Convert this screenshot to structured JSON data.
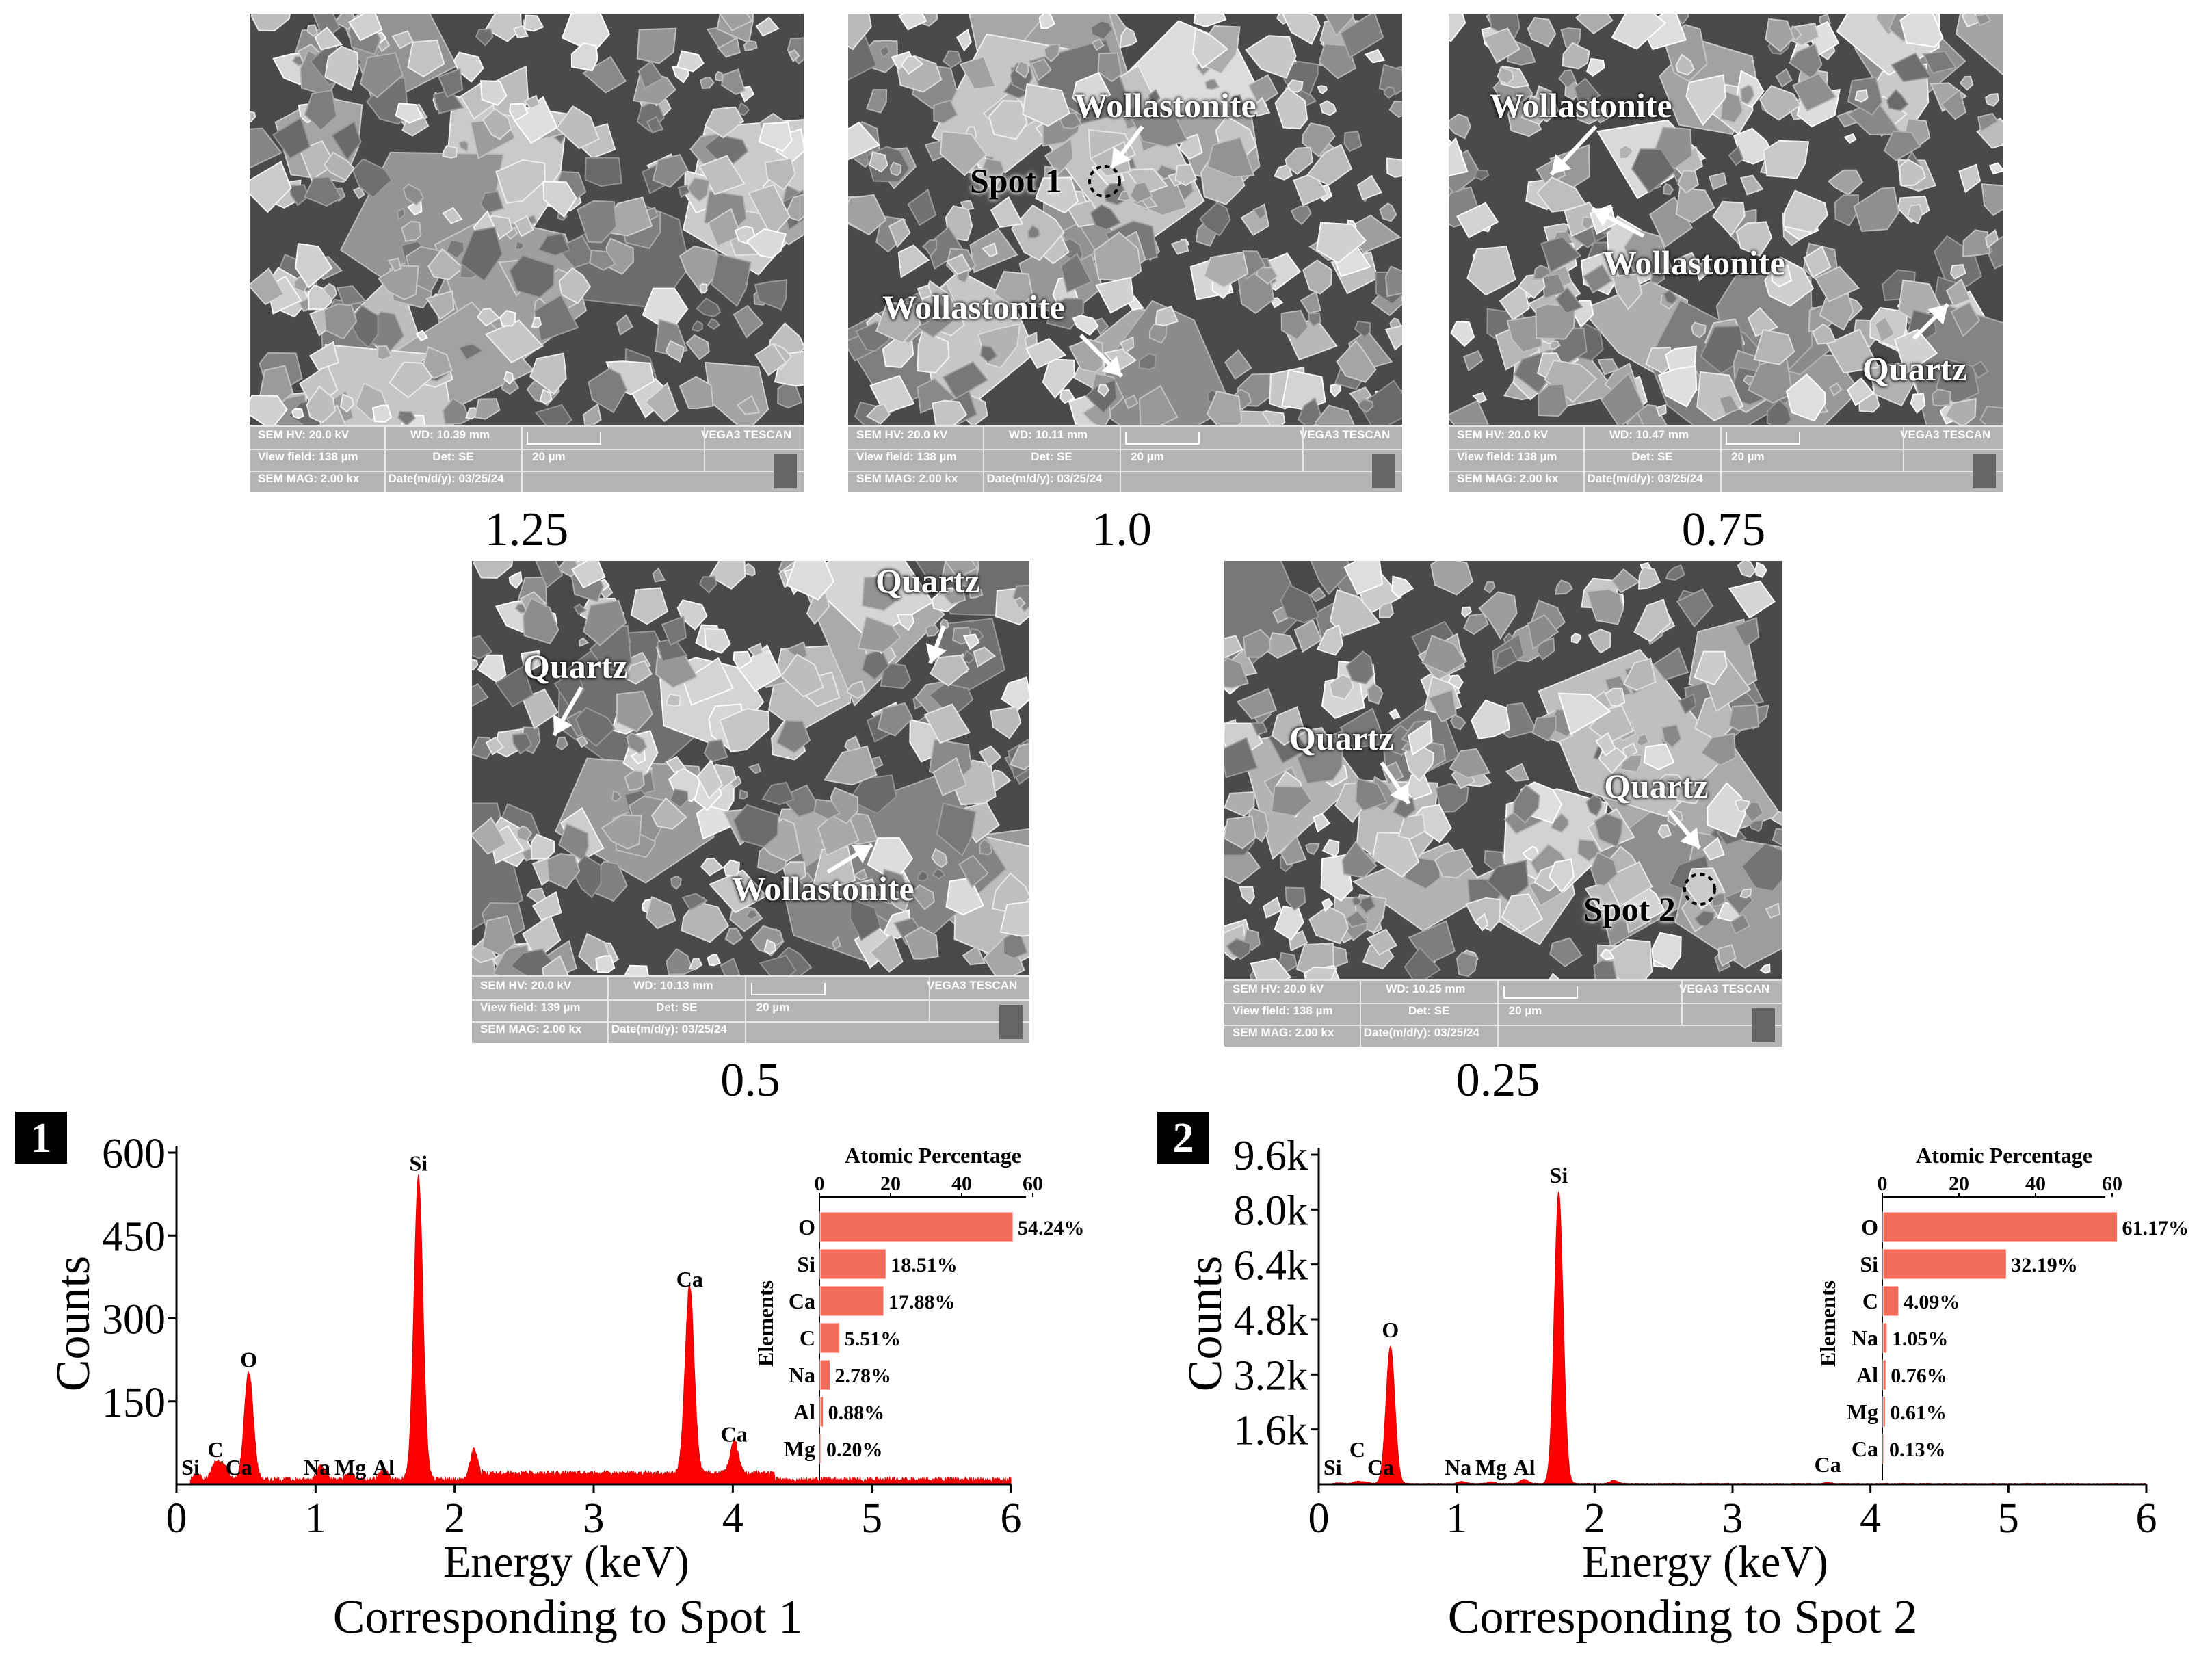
{
  "sem_images": [
    {
      "sample": "1.25",
      "labels": [],
      "spot": null,
      "info": {
        "hv": "SEM HV: 20.0 kV",
        "wd": "WD: 10.39 mm",
        "brand": "VEGA3 TESCAN",
        "view_field": "View field: 138 µm",
        "det": "Det: SE",
        "scale": "20 µm",
        "mag": "SEM MAG: 2.00 kx",
        "date": "Date(m/d/y): 03/25/24"
      }
    },
    {
      "sample": "1.0",
      "labels": [
        "Wollastonite",
        "Wollastonite"
      ],
      "spot": "Spot 1",
      "info": {
        "hv": "SEM HV: 20.0 kV",
        "wd": "WD: 10.11 mm",
        "brand": "VEGA3 TESCAN",
        "view_field": "View field: 138 µm",
        "det": "Det: SE",
        "scale": "20 µm",
        "mag": "SEM MAG: 2.00 kx",
        "date": "Date(m/d/y): 03/25/24"
      }
    },
    {
      "sample": "0.75",
      "labels": [
        "Wollastonite",
        "Wollastonite",
        "Quartz"
      ],
      "spot": null,
      "info": {
        "hv": "SEM HV: 20.0 kV",
        "wd": "WD: 10.47 mm",
        "brand": "VEGA3 TESCAN",
        "view_field": "View field: 138 µm",
        "det": "Det: SE",
        "scale": "20 µm",
        "mag": "SEM MAG: 2.00 kx",
        "date": "Date(m/d/y): 03/25/24"
      }
    },
    {
      "sample": "0.5",
      "labels": [
        "Quartz",
        "Quartz",
        "Wollastonite"
      ],
      "spot": null,
      "info": {
        "hv": "SEM HV: 20.0 kV",
        "wd": "WD: 10.13 mm",
        "brand": "VEGA3 TESCAN",
        "view_field": "View field: 139 µm",
        "det": "Det: SE",
        "scale": "20 µm",
        "mag": "SEM MAG: 2.00 kx",
        "date": "Date(m/d/y): 03/25/24"
      }
    },
    {
      "sample": "0.25",
      "labels": [
        "Quartz",
        "Quartz"
      ],
      "spot": "Spot 2",
      "info": {
        "hv": "SEM HV: 20.0 kV",
        "wd": "WD: 10.25 mm",
        "brand": "VEGA3 TESCAN",
        "view_field": "View field: 138 µm",
        "det": "Det: SE",
        "scale": "20 µm",
        "mag": "SEM MAG: 2.00 kx",
        "date": "Date(m/d/y): 03/25/24"
      }
    }
  ],
  "chart_data": [
    {
      "type": "line",
      "panel": "1",
      "caption": "Corresponding to Spot 1",
      "xlabel": "Energy (keV)",
      "ylabel": "Counts",
      "xlim": [
        0,
        6
      ],
      "ylim": [
        0,
        600
      ],
      "x_ticks": [
        "0",
        "1",
        "2",
        "3",
        "4",
        "5",
        "6"
      ],
      "y_ticks": [
        "600",
        "450",
        "300",
        "150"
      ],
      "y_tick_values": [
        600,
        450,
        300,
        150
      ],
      "peaks": [
        {
          "label": "Si",
          "x": 0.15,
          "y": 8
        },
        {
          "label": "C",
          "x": 0.28,
          "y": 30
        },
        {
          "label": "Ca",
          "x": 0.34,
          "y": 25
        },
        {
          "label": "O",
          "x": 0.52,
          "y": 195
        },
        {
          "label": "Na",
          "x": 1.04,
          "y": 25
        },
        {
          "label": "Mg",
          "x": 1.25,
          "y": 12
        },
        {
          "label": "Al",
          "x": 1.49,
          "y": 20
        },
        {
          "label": "Si",
          "x": 1.74,
          "y": 550
        },
        {
          "label": "",
          "x": 2.14,
          "y": 55
        },
        {
          "label": "Ca",
          "x": 3.69,
          "y": 340
        },
        {
          "label": "Ca",
          "x": 4.01,
          "y": 60
        }
      ],
      "inset": {
        "title": "Atomic Percentage",
        "ylabel": "Elements",
        "x_ticks": [
          "0",
          "20",
          "40",
          "60"
        ],
        "xlim": [
          0,
          60
        ],
        "bars": [
          {
            "element": "O",
            "value": 54.24,
            "label": "54.24%"
          },
          {
            "element": "Si",
            "value": 18.51,
            "label": "18.51%"
          },
          {
            "element": "Ca",
            "value": 17.88,
            "label": "17.88%"
          },
          {
            "element": "C",
            "value": 5.51,
            "label": "5.51%"
          },
          {
            "element": "Na",
            "value": 2.78,
            "label": "2.78%"
          },
          {
            "element": "Al",
            "value": 0.88,
            "label": "0.88%"
          },
          {
            "element": "Mg",
            "value": 0.2,
            "label": "0.20%"
          }
        ]
      }
    },
    {
      "type": "line",
      "panel": "2",
      "caption": "Corresponding to Spot 2",
      "xlabel": "Energy (keV)",
      "ylabel": "Counts",
      "xlim": [
        0,
        6
      ],
      "ylim": [
        0,
        9600
      ],
      "x_ticks": [
        "0",
        "1",
        "2",
        "3",
        "4",
        "5",
        "6"
      ],
      "y_ticks": [
        "9.6k",
        "8.0k",
        "6.4k",
        "4.8k",
        "3.2k",
        "1.6k"
      ],
      "y_tick_values": [
        9600,
        8000,
        6400,
        4800,
        3200,
        1600
      ],
      "peaks": [
        {
          "label": "Si",
          "x": 0.15,
          "y": 20
        },
        {
          "label": "C",
          "x": 0.28,
          "y": 60
        },
        {
          "label": "Ca",
          "x": 0.34,
          "y": 40
        },
        {
          "label": "O",
          "x": 0.52,
          "y": 4000
        },
        {
          "label": "Na",
          "x": 1.04,
          "y": 60
        },
        {
          "label": "Mg",
          "x": 1.25,
          "y": 50
        },
        {
          "label": "Al",
          "x": 1.49,
          "y": 120
        },
        {
          "label": "Si",
          "x": 1.74,
          "y": 8500
        },
        {
          "label": "",
          "x": 2.14,
          "y": 90
        },
        {
          "label": "Ca",
          "x": 3.69,
          "y": 30
        }
      ],
      "inset": {
        "title": "Atomic Percentage",
        "ylabel": "Elements",
        "x_ticks": [
          "0",
          "20",
          "40",
          "60"
        ],
        "xlim": [
          0,
          60
        ],
        "bars": [
          {
            "element": "O",
            "value": 61.17,
            "label": "61.17%"
          },
          {
            "element": "Si",
            "value": 32.19,
            "label": "32.19%"
          },
          {
            "element": "C",
            "value": 4.09,
            "label": "4.09%"
          },
          {
            "element": "Na",
            "value": 1.05,
            "label": "1.05%"
          },
          {
            "element": "Al",
            "value": 0.76,
            "label": "0.76%"
          },
          {
            "element": "Mg",
            "value": 0.61,
            "label": "0.61%"
          },
          {
            "element": "Ca",
            "value": 0.13,
            "label": "0.13%"
          }
        ]
      }
    }
  ]
}
